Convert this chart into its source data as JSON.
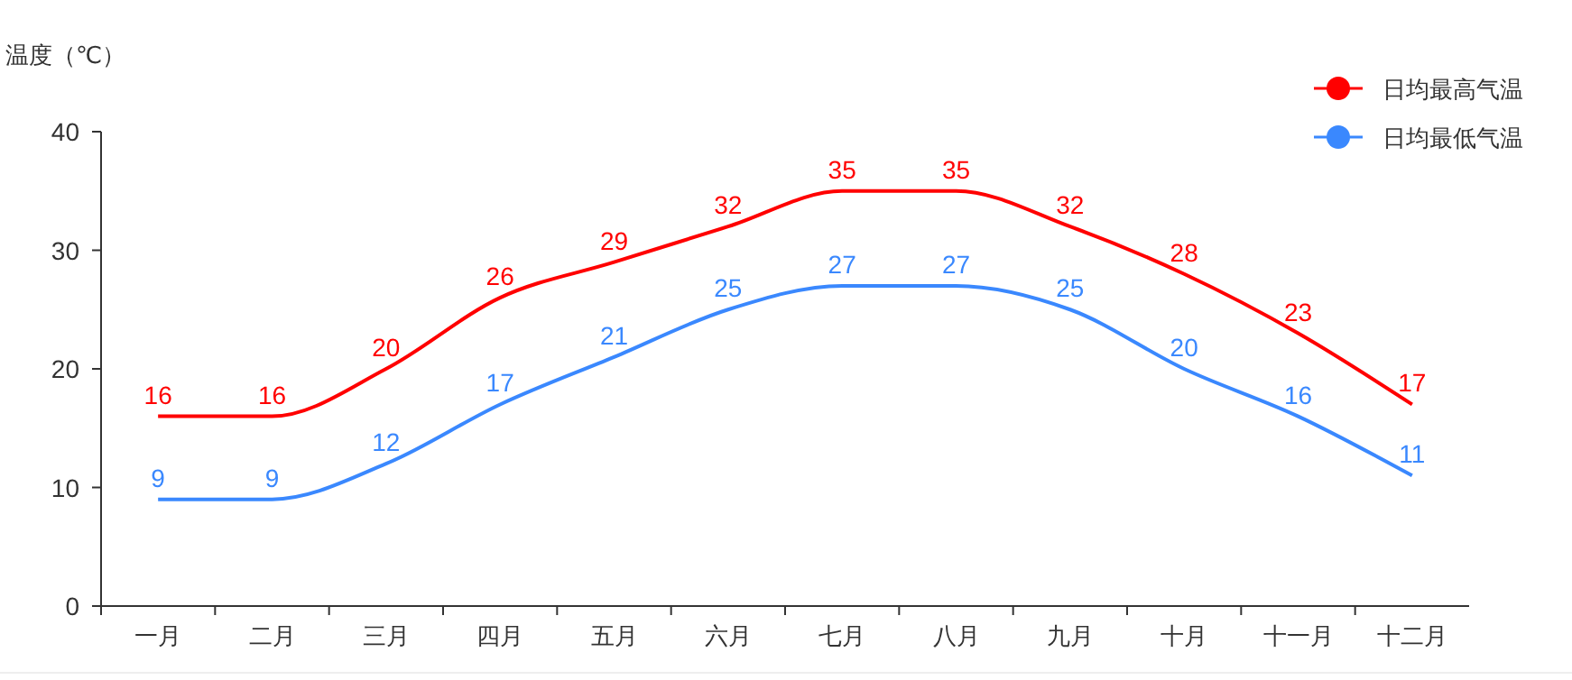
{
  "chart_data": {
    "type": "line",
    "ylabel": "温度（℃）",
    "categories": [
      "一月",
      "二月",
      "三月",
      "四月",
      "五月",
      "六月",
      "七月",
      "八月",
      "九月",
      "十月",
      "十一月",
      "十二月"
    ],
    "series": [
      {
        "name": "日均最高气温",
        "color": "#ff0000",
        "values": [
          16,
          16,
          20,
          26,
          29,
          32,
          35,
          35,
          32,
          28,
          23,
          17
        ]
      },
      {
        "name": "日均最低气温",
        "color": "#3a88fe",
        "values": [
          9,
          9,
          12,
          17,
          21,
          25,
          27,
          27,
          25,
          20,
          16,
          11
        ]
      }
    ],
    "ylim": [
      0,
      40
    ],
    "yticks": [
      0,
      10,
      20,
      30,
      40
    ],
    "grid": false,
    "legend": "top right",
    "data_labels": true
  }
}
